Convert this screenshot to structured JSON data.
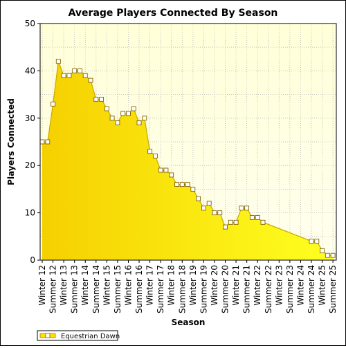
{
  "chart_data": {
    "type": "area",
    "title": "Average Players Connected By Season",
    "xlabel": "Season",
    "ylabel": "Players Connected",
    "ylim": [
      0,
      50
    ],
    "yticks": [
      0,
      10,
      20,
      30,
      40,
      50
    ],
    "grid": true,
    "legend": "bottom-left",
    "category_labels": [
      "Winter 12",
      "Summer 12",
      "Winter 13",
      "Summer 13",
      "Winter 14",
      "Summer 14",
      "Winter 15",
      "Summer 15",
      "Winter 16",
      "Summer 16",
      "Winter 17",
      "Summer 17",
      "Winter 18",
      "Summer 18",
      "Winter 19",
      "Summer 19",
      "Winter 20",
      "Summer 20",
      "Winter 21",
      "Summer 21",
      "Winter 22",
      "Summer 22",
      "Winter 23",
      "Summer 23",
      "Winter 24",
      "Summer 24",
      "Winter 25",
      "Summer 25"
    ],
    "series": [
      {
        "name": "Equestrian Dawn",
        "color": "#FFE000",
        "values": [
          25,
          25,
          33,
          42,
          39,
          39,
          40,
          40,
          39,
          38,
          34,
          34,
          32,
          30,
          29,
          31,
          31,
          32,
          29,
          30,
          23,
          22,
          19,
          19,
          18,
          16,
          16,
          16,
          15,
          13,
          11,
          12,
          10,
          10,
          7,
          8,
          8,
          11,
          11,
          9,
          9,
          8,
          null,
          null,
          null,
          null,
          null,
          null,
          null,
          null,
          null,
          null,
          null,
          null,
          4,
          4,
          2,
          1,
          1
        ],
        "points": [
          [
            0,
            25
          ],
          [
            0.5,
            25
          ],
          [
            1,
            33
          ],
          [
            1.5,
            42
          ],
          [
            2,
            39
          ],
          [
            2.5,
            39
          ],
          [
            3,
            40
          ],
          [
            3.5,
            40
          ],
          [
            4,
            39
          ],
          [
            4.5,
            38
          ],
          [
            5,
            34
          ],
          [
            5.5,
            34
          ],
          [
            6,
            32
          ],
          [
            6.5,
            30
          ],
          [
            7,
            29
          ],
          [
            7.5,
            31
          ],
          [
            8,
            31
          ],
          [
            8.5,
            32
          ],
          [
            9,
            29
          ],
          [
            9.5,
            30
          ],
          [
            10,
            23
          ],
          [
            10.5,
            22
          ],
          [
            11,
            19
          ],
          [
            11.5,
            19
          ],
          [
            12,
            18
          ],
          [
            12.5,
            16
          ],
          [
            13,
            16
          ],
          [
            13.5,
            16
          ],
          [
            14,
            15
          ],
          [
            14.5,
            13
          ],
          [
            15,
            11
          ],
          [
            15.5,
            12
          ],
          [
            16,
            10
          ],
          [
            16.5,
            10
          ],
          [
            17,
            7
          ],
          [
            17.5,
            8
          ],
          [
            18,
            8
          ],
          [
            18.5,
            11
          ],
          [
            19,
            11
          ],
          [
            19.5,
            9
          ],
          [
            20,
            9
          ],
          [
            20.5,
            8
          ],
          [
            25,
            4
          ],
          [
            25.5,
            4
          ],
          [
            26,
            2
          ],
          [
            26.5,
            1
          ],
          [
            27,
            1
          ]
        ]
      }
    ]
  }
}
